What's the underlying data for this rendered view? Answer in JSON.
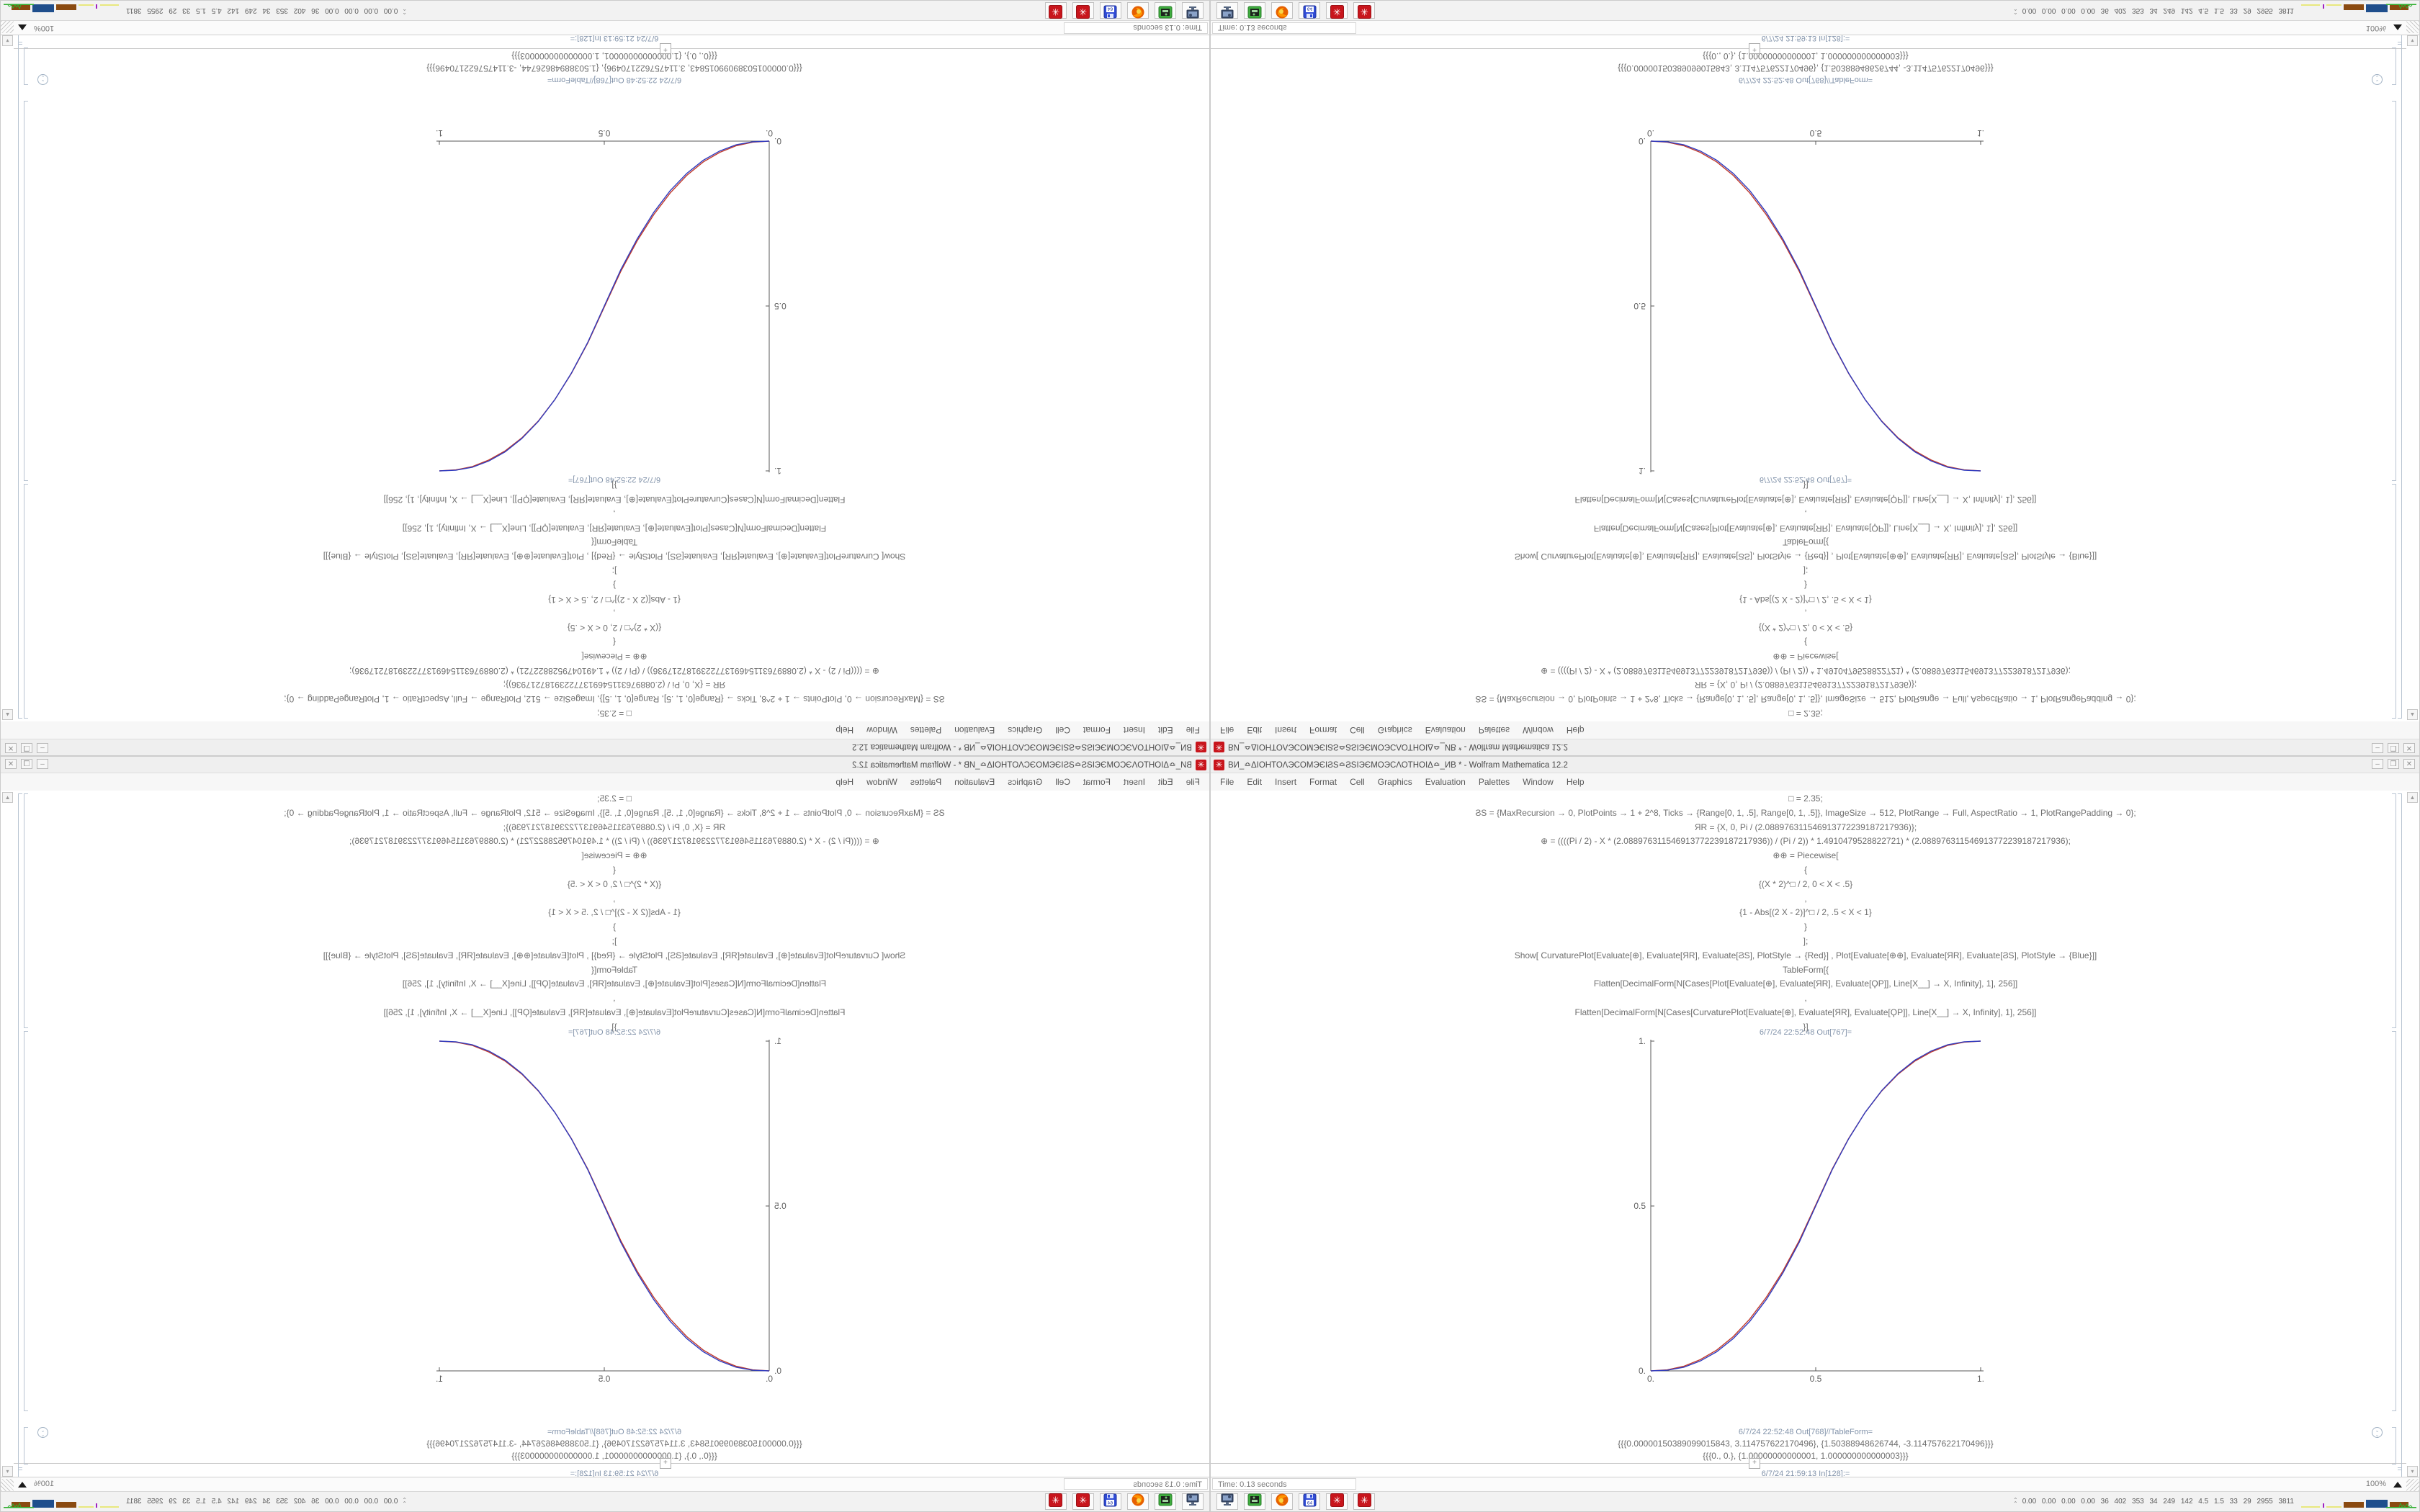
{
  "window": {
    "title": "ВИ_≏ΔΙΟΗΤΟΛЭCOMЭЄΙϨS≏ϨSΙЭЄMOЭCΛΟΤΗΟΙΔ≏_ИВ * - Wolfram Mathematica 12.2",
    "app_icon_glyph": "✳",
    "controls": {
      "minimize": "–",
      "maximize": "❒",
      "close": "✕"
    }
  },
  "menu": {
    "items": [
      "File",
      "Edit",
      "Insert",
      "Format",
      "Cell",
      "Graphics",
      "Evaluation",
      "Palettes",
      "Window",
      "Help"
    ]
  },
  "notebook": {
    "code_lines": [
      "□ = 2.35;",
      "ϨS = {MaxRecursion → 0, PlotPoints → 1 + 2^8, Ticks → {Range[0, 1, .5], Range[0, 1, .5]}, ImageSize → 512, PlotRange → Full, AspectRatio → 1, PlotRangePadding → 0};",
      "ЯR = {X, 0, Pi / (2.088976311546913772239187217936)};",
      "⊕ = ((((Pi / 2) - X * (2.088976311546913772239187217936)) / (Pi / 2)) * 1.4910479528822721) * (2.088976311546913772239187217936);",
      "⊕⊕ = Piecewise[",
      "{",
      "{(X * 2)^□ / 2, 0 < X < .5}",
      ",",
      "{1 - Abs[(2 X - 2)]^□ / 2, .5 < X < 1}",
      "}",
      "];",
      "Show[  CurvaturePlot[Evaluate[⊕], Evaluate[ЯR], Evaluate[ϨS], PlotStyle → {Red}]  ,  Plot[Evaluate[⊕⊕], Evaluate[ЯR], Evaluate[ϨS], PlotStyle → {Blue}]]",
      "TableForm[{",
      "Flatten[DecimalForm[N[Cases[Plot[Evaluate[⊕], Evaluate[ЯR], Evaluate[ϘΡ]], Line[X__] → X, Infinity], 1], 256]]",
      ",",
      "Flatten[DecimalForm[N[Cases[CurvaturePlot[Evaluate[⊕], Evaluate[ЯR], Evaluate[ϘΡ]], Line[X__] → X, Infinity], 1], 256]]",
      "}]"
    ],
    "out_plot_label": "6/7/24 22:52:48 Out[767]=",
    "out_table_label": "6/7/24 22:52:48 Out[768]//TableForm=",
    "out_table_lines": [
      "{{{0.00000150389099015843, 3.114757622170496}, {1.50388948626744, -3.114757622170496}}}",
      "{{{0., 0.}, {1.00000000000001, 1.000000000000003}}}"
    ],
    "insert_plus": "+",
    "in_prompt_label": "6/7/24 21:59:13 In[128]:="
  },
  "chart_data": {
    "type": "line",
    "title": "",
    "xlabel": "",
    "ylabel": "",
    "xlim": [
      0,
      1
    ],
    "ylim": [
      0,
      1
    ],
    "grid": false,
    "legend_position": "none",
    "xticks": {
      "values": [
        0,
        0.5,
        1
      ],
      "labels": [
        "0.",
        "0.5",
        "1."
      ]
    },
    "yticks": {
      "values": [
        0,
        0.5,
        1
      ],
      "labels": [
        "0.",
        "0.5",
        "1."
      ]
    },
    "x": [
      0,
      0.05,
      0.1,
      0.15,
      0.2,
      0.25,
      0.3,
      0.35,
      0.4,
      0.45,
      0.5,
      0.55,
      0.6,
      0.65,
      0.7,
      0.75,
      0.8,
      0.85,
      0.9,
      0.95,
      1
    ],
    "series": [
      {
        "name": "CurvaturePlot of ⊕",
        "color": "#c0392b",
        "values": [
          0,
          0.003,
          0.014,
          0.034,
          0.063,
          0.104,
          0.157,
          0.223,
          0.302,
          0.395,
          0.503,
          0.612,
          0.705,
          0.784,
          0.849,
          0.9,
          0.939,
          0.967,
          0.987,
          0.997,
          1
        ]
      },
      {
        "name": "Plot of ⊕⊕ (Piecewise, exponent 2.35)",
        "color": "#2f3bbf",
        "values": [
          0,
          0.002,
          0.011,
          0.03,
          0.058,
          0.098,
          0.15,
          0.216,
          0.296,
          0.39,
          0.5,
          0.61,
          0.704,
          0.784,
          0.85,
          0.902,
          0.942,
          0.97,
          0.989,
          0.998,
          1
        ]
      }
    ]
  },
  "status": {
    "time_label": "Time: 0.13 seconds",
    "magnification": "100%"
  },
  "taskbar": {
    "apps": [
      {
        "icon": "computer-icon"
      },
      {
        "icon": "green-drive-icon"
      },
      {
        "icon": "firefox-icon"
      },
      {
        "icon": "floppy64-icon",
        "label": "64"
      },
      {
        "icon": "mathematica-icon"
      },
      {
        "icon": "mathematica-icon"
      }
    ],
    "tray_numbers": [
      "0.00",
      "0.00",
      "0.00",
      "0.00",
      "36",
      "402",
      "353",
      "34",
      "249",
      "142",
      "4.5",
      "1.5",
      "33",
      "29",
      "2955",
      "3811"
    ],
    "tray_colors": {
      "yellow": "#e8e87e",
      "purple": "#a020c0",
      "brown": "#8a4a10",
      "blue": "#1f4e8c",
      "green": "#2fae2f"
    }
  },
  "composition": {
    "note": "Single 1680x1050 screen capture shown four times: bottom-right original, bottom-left mirrored horizontally, top-right mirrored vertically, top-left rotated 180 degrees"
  }
}
